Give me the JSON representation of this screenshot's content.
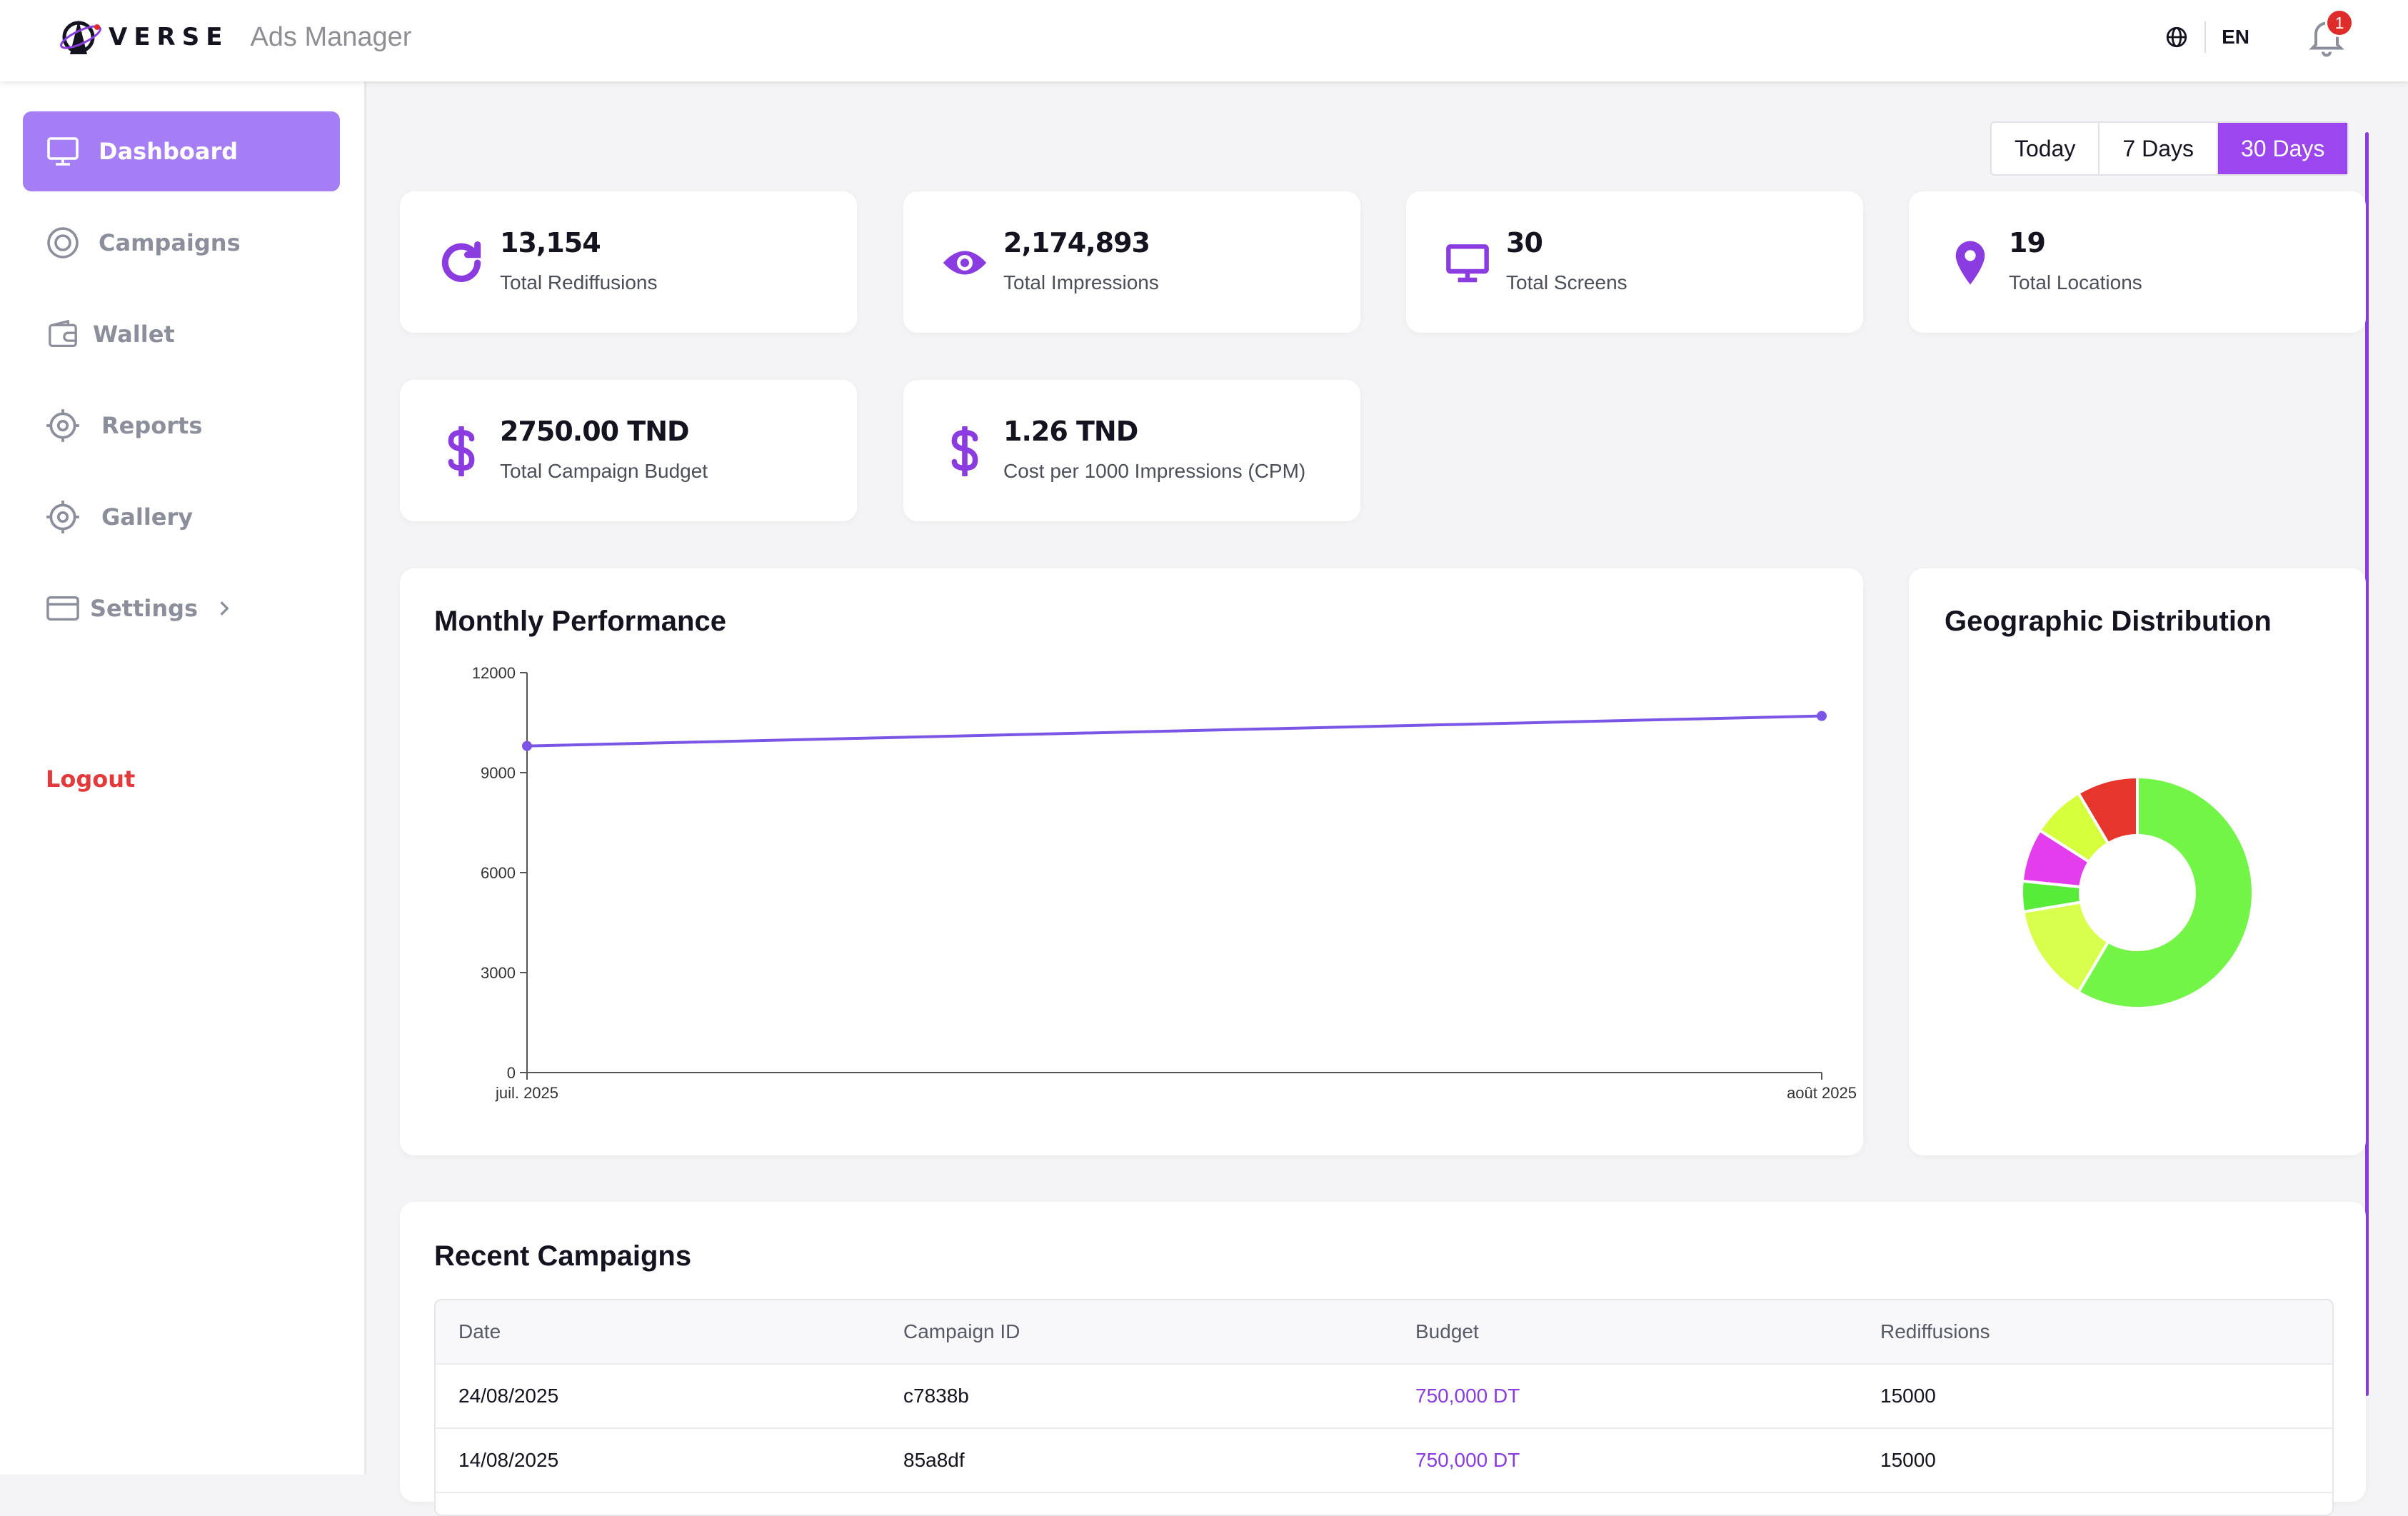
{
  "header": {
    "brand": "VERSE",
    "app_name": "Ads Manager",
    "language": "EN",
    "notification_count": "1",
    "icons": [
      "globe-icon",
      "bell-icon"
    ]
  },
  "sidebar": {
    "items": [
      {
        "label": "Dashboard",
        "icon": "monitor-icon",
        "active": true
      },
      {
        "label": "Campaigns",
        "icon": "target-icon"
      },
      {
        "label": "Wallet",
        "icon": "wallet-icon"
      },
      {
        "label": "Reports",
        "icon": "crosshair-icon"
      },
      {
        "label": "Gallery",
        "icon": "crosshair-icon"
      },
      {
        "label": "Settings",
        "icon": "card-icon"
      }
    ],
    "logout": "Logout"
  },
  "date_range": {
    "options": [
      "Today",
      "7 Days",
      "30 Days"
    ],
    "selected": "30 Days"
  },
  "stats": [
    {
      "value": "13,154",
      "label": "Total Rediffusions",
      "icon": "refresh-icon"
    },
    {
      "value": "2,174,893",
      "label": "Total Impressions",
      "icon": "eye-icon"
    },
    {
      "value": "30",
      "label": "Total Screens",
      "icon": "screen-icon"
    },
    {
      "value": "19",
      "label": "Total Locations",
      "icon": "location-pin-icon"
    },
    {
      "value": "2750.00 TND",
      "label": "Total Campaign Budget",
      "icon": "dollar-icon"
    },
    {
      "value": "1.26 TND",
      "label": "Cost per 1000 Impressions (CPM)",
      "icon": "dollar-icon"
    }
  ],
  "performance": {
    "title": "Monthly Performance"
  },
  "geo": {
    "title": "Geographic Distribution"
  },
  "chart_data": [
    {
      "type": "line",
      "title": "Monthly Performance",
      "categories": [
        "juil. 2025",
        "août 2025"
      ],
      "series": [
        {
          "values": [
            9800,
            10700
          ],
          "color": "#7b55e6"
        }
      ],
      "ylim": [
        0,
        12000
      ],
      "yticks": [
        0,
        3000,
        6000,
        9000,
        12000
      ],
      "grid": false
    },
    {
      "type": "pie",
      "title": "Geographic Distribution",
      "donut": true,
      "values": [
        55,
        13,
        4,
        7,
        7,
        8
      ],
      "colors": [
        "#73f548",
        "#d9ff4d",
        "#58ec3a",
        "#e43ded",
        "#d4ff3a",
        "#e6362b"
      ]
    }
  ],
  "recent": {
    "title": "Recent Campaigns",
    "columns": [
      "Date",
      "Campaign ID",
      "Budget",
      "Rediffusions"
    ],
    "rows": [
      [
        "24/08/2025",
        "c7838b",
        "750,000 DT",
        "15000"
      ],
      [
        "14/08/2025",
        "85a8df",
        "750,000 DT",
        "15000"
      ]
    ]
  }
}
